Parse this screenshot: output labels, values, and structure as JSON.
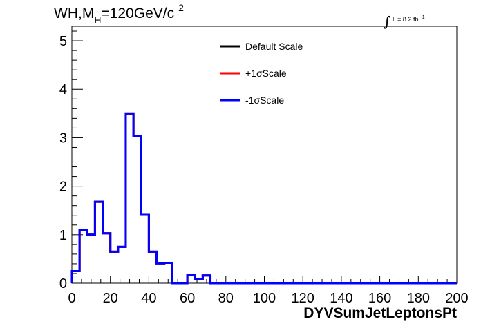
{
  "chart_data": {
    "type": "line",
    "title_parts": {
      "main": "WH,M",
      "sub": "H",
      "rest": "=120GeV/c",
      "sup": "2"
    },
    "lumi": {
      "integral": "∫",
      "text": "L = 8.2 fb",
      "sup": "-1"
    },
    "xlabel": "DYVSumJetLeptonsPt",
    "ylabel": "",
    "xlim": [
      0,
      200
    ],
    "ylim": [
      0,
      5.3
    ],
    "x_ticks": [
      0,
      20,
      40,
      60,
      80,
      100,
      120,
      140,
      160,
      180,
      200
    ],
    "y_ticks": [
      0,
      1,
      2,
      3,
      4,
      5
    ],
    "bin_edges": [
      0,
      4,
      8,
      12,
      16,
      20,
      24,
      28,
      32,
      36,
      40,
      44,
      48,
      52,
      56,
      60,
      64,
      68,
      72,
      76,
      80,
      84,
      88,
      92,
      96,
      100,
      104,
      108,
      112,
      116,
      120,
      124,
      128,
      132,
      136,
      140,
      144,
      148,
      152,
      156,
      160,
      164,
      168,
      172,
      176,
      180,
      184,
      188,
      192,
      196,
      200
    ],
    "legend": {
      "position": "top-center",
      "entries": [
        {
          "label": "Default Scale",
          "color": "#000000"
        },
        {
          "label": "+1σScale",
          "color": "#ff0000"
        },
        {
          "label": "-1σScale",
          "color": "#0000ff"
        }
      ]
    },
    "series": [
      {
        "name": "Default Scale",
        "color": "#000000",
        "values": [
          0.25,
          1.1,
          1.0,
          1.68,
          1.03,
          0.65,
          0.75,
          3.5,
          3.03,
          1.41,
          0.65,
          0.41,
          0.42,
          0,
          0,
          0.17,
          0.08,
          0.16,
          0,
          0,
          0,
          0,
          0,
          0,
          0,
          0,
          0,
          0,
          0,
          0,
          0,
          0,
          0,
          0,
          0,
          0,
          0,
          0,
          0,
          0,
          0,
          0,
          0,
          0,
          0,
          0,
          0,
          0,
          0,
          0
        ]
      },
      {
        "name": "+1σScale",
        "color": "#ff0000",
        "values": [
          0.25,
          1.1,
          1.0,
          1.68,
          1.03,
          0.65,
          0.75,
          3.5,
          3.03,
          1.41,
          0.65,
          0.41,
          0.42,
          0,
          0,
          0.17,
          0.08,
          0.16,
          0,
          0,
          0,
          0,
          0,
          0,
          0,
          0,
          0,
          0,
          0,
          0,
          0,
          0,
          0,
          0,
          0,
          0,
          0,
          0,
          0,
          0,
          0,
          0,
          0,
          0,
          0,
          0,
          0,
          0,
          0,
          0
        ]
      },
      {
        "name": "-1σScale",
        "color": "#0000ff",
        "values": [
          0.25,
          1.1,
          1.0,
          1.68,
          1.03,
          0.65,
          0.75,
          3.5,
          3.03,
          1.41,
          0.65,
          0.41,
          0.42,
          0,
          0,
          0.17,
          0.08,
          0.16,
          0,
          0,
          0,
          0,
          0,
          0,
          0,
          0,
          0,
          0,
          0,
          0,
          0,
          0,
          0,
          0,
          0,
          0,
          0,
          0,
          0,
          0,
          0,
          0,
          0,
          0,
          0,
          0,
          0,
          0,
          0,
          0
        ]
      }
    ],
    "grid": false
  }
}
